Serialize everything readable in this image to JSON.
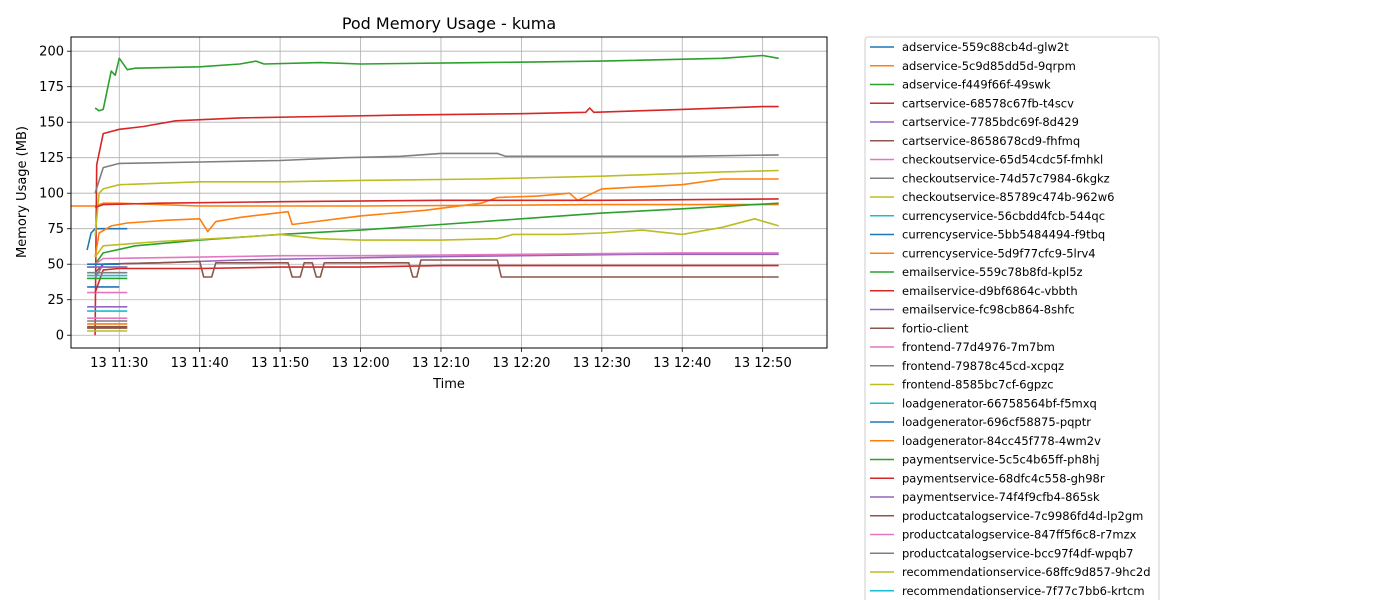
{
  "chart_data": {
    "type": "line",
    "title": "Pod Memory Usage - kuma",
    "xlabel": "Time",
    "ylabel": "Memory Usage (MB)",
    "x_unit": "minutes",
    "x_ticks": [
      {
        "label": "13 11:30",
        "t": "11:30"
      },
      {
        "label": "13 11:40",
        "t": "11:40"
      },
      {
        "label": "13 11:50",
        "t": "11:50"
      },
      {
        "label": "13 12:00",
        "t": "12:00"
      },
      {
        "label": "13 12:10",
        "t": "12:10"
      },
      {
        "label": "13 12:20",
        "t": "12:20"
      },
      {
        "label": "13 12:30",
        "t": "12:30"
      },
      {
        "label": "13 12:40",
        "t": "12:40"
      },
      {
        "label": "13 12:50",
        "t": "12:50"
      }
    ],
    "xlim": [
      "11:24",
      "12:58"
    ],
    "y_ticks": [
      0,
      25,
      50,
      75,
      100,
      125,
      150,
      175,
      200
    ],
    "ylim": [
      -9,
      210
    ],
    "grid": true,
    "legend_position": "outside-right",
    "series": [
      {
        "name": "adservice-559c88cb4d-glw2t",
        "color": "#1f77b4",
        "points": [
          [
            "11:26",
            60
          ],
          [
            "11:26.5",
            72
          ],
          [
            "11:27",
            75
          ],
          [
            "11:28",
            75
          ],
          [
            "11:31",
            75
          ]
        ]
      },
      {
        "name": "adservice-5c9d85dd5d-9qrpm",
        "color": "#ff7f0e",
        "points": [
          [
            "11:24",
            91
          ],
          [
            "11:27",
            91
          ],
          [
            "11:27.5",
            92
          ],
          [
            "11:28",
            93
          ],
          [
            "11:30",
            93
          ],
          [
            "11:40",
            91
          ],
          [
            "12:00",
            91
          ],
          [
            "12:30",
            92
          ],
          [
            "12:52",
            92
          ]
        ]
      },
      {
        "name": "adservice-f449f66f-49swk",
        "color": "#2ca02c",
        "points": [
          [
            "11:27",
            160
          ],
          [
            "11:27.5",
            158
          ],
          [
            "11:28",
            159
          ],
          [
            "11:29",
            186
          ],
          [
            "11:29.5",
            183
          ],
          [
            "11:30",
            195
          ],
          [
            "11:31",
            187
          ],
          [
            "11:32",
            188
          ],
          [
            "11:40",
            189
          ],
          [
            "11:45",
            191
          ],
          [
            "11:47",
            193
          ],
          [
            "11:48",
            191
          ],
          [
            "11:55",
            192
          ],
          [
            "12:00",
            191
          ],
          [
            "12:15",
            192
          ],
          [
            "12:30",
            193
          ],
          [
            "12:45",
            195
          ],
          [
            "12:50",
            197
          ],
          [
            "12:52",
            195
          ]
        ]
      },
      {
        "name": "cartservice-68578c67fb-t4scv",
        "color": "#d62728",
        "points": [
          [
            "11:27",
            0
          ],
          [
            "11:27.2",
            120
          ],
          [
            "11:28",
            142
          ],
          [
            "11:30",
            145
          ],
          [
            "11:33",
            147
          ],
          [
            "11:37",
            151
          ],
          [
            "11:45",
            153
          ],
          [
            "11:55",
            154
          ],
          [
            "12:05",
            155
          ],
          [
            "12:20",
            156
          ],
          [
            "12:28",
            157
          ],
          [
            "12:28.5",
            160
          ],
          [
            "12:29",
            157
          ],
          [
            "12:40",
            159
          ],
          [
            "12:50",
            161
          ],
          [
            "12:52",
            161
          ]
        ]
      },
      {
        "name": "cartservice-7785bdc69f-8d429",
        "color": "#9467bd",
        "points": [
          [
            "11:26",
            20
          ],
          [
            "11:31",
            20
          ]
        ]
      },
      {
        "name": "cartservice-8658678cd9-fhfmq",
        "color": "#8c564b",
        "points": [
          [
            "11:26",
            5
          ],
          [
            "11:31",
            5
          ]
        ]
      },
      {
        "name": "checkoutservice-65d54cdc5f-fmhkl",
        "color": "#e377c2",
        "points": [
          [
            "11:26",
            30
          ],
          [
            "11:31",
            30
          ]
        ]
      },
      {
        "name": "checkoutservice-74d57c7984-6kgkz",
        "color": "#7f7f7f",
        "points": [
          [
            "11:27",
            100
          ],
          [
            "11:28",
            118
          ],
          [
            "11:30",
            121
          ],
          [
            "11:40",
            122
          ],
          [
            "11:50",
            123
          ],
          [
            "11:58",
            125
          ],
          [
            "12:05",
            126
          ],
          [
            "12:10",
            128
          ],
          [
            "12:17",
            128
          ],
          [
            "12:18",
            126
          ],
          [
            "12:30",
            126
          ],
          [
            "12:40",
            126
          ],
          [
            "12:52",
            127
          ]
        ]
      },
      {
        "name": "checkoutservice-85789c474b-962w6",
        "color": "#bcbd22",
        "points": [
          [
            "11:27",
            70
          ],
          [
            "11:27.5",
            100
          ],
          [
            "11:28",
            103
          ],
          [
            "11:30",
            106
          ],
          [
            "11:40",
            108
          ],
          [
            "11:50",
            108
          ],
          [
            "12:00",
            109
          ],
          [
            "12:15",
            110
          ],
          [
            "12:30",
            112
          ],
          [
            "12:45",
            115
          ],
          [
            "12:52",
            116
          ]
        ]
      },
      {
        "name": "currencyservice-56cbdd4fcb-544qc",
        "color": "#17becf",
        "points": [
          [
            "11:26",
            48
          ],
          [
            "11:31",
            48
          ]
        ]
      },
      {
        "name": "currencyservice-5bb5484494-f9tbq",
        "color": "#1f77b4",
        "points": [
          [
            "11:26",
            34
          ],
          [
            "11:30",
            34
          ]
        ]
      },
      {
        "name": "currencyservice-5d9f77cfc9-5lrv4",
        "color": "#ff7f0e",
        "points": [
          [
            "11:27",
            55
          ],
          [
            "11:27.5",
            72
          ],
          [
            "11:29",
            77
          ],
          [
            "11:31",
            79
          ],
          [
            "11:36",
            81
          ],
          [
            "11:40",
            82
          ],
          [
            "11:41",
            73
          ],
          [
            "11:42",
            80
          ],
          [
            "11:45",
            83
          ],
          [
            "11:51",
            87
          ],
          [
            "11:51.5",
            78
          ],
          [
            "11:53",
            79
          ],
          [
            "12:00",
            84
          ],
          [
            "12:08",
            88
          ],
          [
            "12:15",
            93
          ],
          [
            "12:17",
            97
          ],
          [
            "12:22",
            98
          ],
          [
            "12:26",
            100
          ],
          [
            "12:27",
            95
          ],
          [
            "12:30",
            103
          ],
          [
            "12:40",
            106
          ],
          [
            "12:45",
            110
          ],
          [
            "12:52",
            110
          ]
        ]
      },
      {
        "name": "emailservice-559c78b8fd-kpl5z",
        "color": "#2ca02c",
        "points": [
          [
            "11:27",
            50
          ],
          [
            "11:28",
            58
          ],
          [
            "11:32",
            63
          ],
          [
            "11:40",
            67
          ],
          [
            "11:50",
            71
          ],
          [
            "12:00",
            74
          ],
          [
            "12:10",
            78
          ],
          [
            "12:20",
            82
          ],
          [
            "12:30",
            86
          ],
          [
            "12:40",
            89
          ],
          [
            "12:52",
            93
          ]
        ]
      },
      {
        "name": "emailservice-d9bf6864c-vbbth",
        "color": "#d62728",
        "points": [
          [
            "11:27",
            30
          ],
          [
            "11:28",
            46
          ],
          [
            "11:30",
            47
          ],
          [
            "11:40",
            47
          ],
          [
            "11:50",
            48
          ],
          [
            "12:00",
            48
          ],
          [
            "12:10",
            49
          ],
          [
            "12:30",
            49
          ],
          [
            "12:52",
            49
          ]
        ]
      },
      {
        "name": "emailservice-fc98cb864-8shfc",
        "color": "#9467bd",
        "points": [
          [
            "11:27",
            40
          ],
          [
            "11:28",
            50
          ],
          [
            "11:35",
            51
          ],
          [
            "11:45",
            53
          ],
          [
            "11:55",
            54
          ],
          [
            "12:05",
            55
          ],
          [
            "12:20",
            56
          ],
          [
            "12:35",
            57
          ],
          [
            "12:52",
            57
          ]
        ]
      },
      {
        "name": "fortio-client",
        "color": "#8c564b",
        "points": [
          [
            "11:27",
            44
          ],
          [
            "11:28",
            50
          ],
          [
            "11:35",
            51
          ],
          [
            "11:40",
            52
          ],
          [
            "11:40.5",
            41
          ],
          [
            "11:41.5",
            41
          ],
          [
            "11:42",
            51
          ],
          [
            "11:51",
            51
          ],
          [
            "11:51.5",
            41
          ],
          [
            "11:52.5",
            41
          ],
          [
            "11:53",
            51
          ],
          [
            "11:54",
            51
          ],
          [
            "11:54.5",
            41
          ],
          [
            "11:55",
            41
          ],
          [
            "11:55.5",
            51
          ],
          [
            "12:06",
            51
          ],
          [
            "12:06.5",
            41
          ],
          [
            "12:07",
            41
          ],
          [
            "12:07.5",
            53
          ],
          [
            "12:17",
            53
          ],
          [
            "12:17.5",
            41
          ],
          [
            "12:52",
            41
          ]
        ]
      },
      {
        "name": "frontend-77d4976-7m7bm",
        "color": "#e377c2",
        "points": [
          [
            "11:27",
            50
          ],
          [
            "11:28",
            54
          ],
          [
            "11:40",
            55
          ],
          [
            "11:50",
            56
          ],
          [
            "12:00",
            56
          ],
          [
            "12:20",
            57
          ],
          [
            "12:40",
            58
          ],
          [
            "12:52",
            58
          ]
        ]
      },
      {
        "name": "frontend-79878c45cd-xcpqz",
        "color": "#7f7f7f",
        "points": [
          [
            "11:26",
            10
          ],
          [
            "11:31",
            10
          ]
        ]
      },
      {
        "name": "frontend-8585bc7cf-6gpzc",
        "color": "#bcbd22",
        "points": [
          [
            "11:27",
            55
          ],
          [
            "11:28",
            63
          ],
          [
            "11:35",
            66
          ],
          [
            "11:45",
            69
          ],
          [
            "11:50",
            71
          ],
          [
            "11:55",
            68
          ],
          [
            "12:00",
            67
          ],
          [
            "12:10",
            67
          ],
          [
            "12:17",
            68
          ],
          [
            "12:19",
            71
          ],
          [
            "12:25",
            71
          ],
          [
            "12:30",
            72
          ],
          [
            "12:35",
            74
          ],
          [
            "12:40",
            71
          ],
          [
            "12:45",
            76
          ],
          [
            "12:49",
            82
          ],
          [
            "12:52",
            77
          ]
        ]
      },
      {
        "name": "loadgenerator-66758564bf-f5mxq",
        "color": "#17becf",
        "points": [
          [
            "11:26",
            17
          ],
          [
            "11:31",
            17
          ]
        ]
      },
      {
        "name": "loadgenerator-696cf58875-pqptr",
        "color": "#1f77b4",
        "points": [
          [
            "11:26",
            50
          ],
          [
            "11:30",
            50
          ]
        ]
      },
      {
        "name": "loadgenerator-84cc45f778-4wm2v",
        "color": "#ff7f0e",
        "points": [
          [
            "11:26",
            8
          ],
          [
            "11:31",
            8
          ]
        ]
      },
      {
        "name": "paymentservice-5c5c4b65ff-ph8hj",
        "color": "#2ca02c",
        "points": [
          [
            "11:26",
            40
          ],
          [
            "11:31",
            40
          ]
        ]
      },
      {
        "name": "paymentservice-68dfc4c558-gh98r",
        "color": "#d62728",
        "points": [
          [
            "11:27",
            90
          ],
          [
            "11:28",
            92
          ],
          [
            "11:35",
            93
          ],
          [
            "11:50",
            94
          ],
          [
            "12:10",
            95
          ],
          [
            "12:30",
            95
          ],
          [
            "12:52",
            96
          ]
        ]
      },
      {
        "name": "paymentservice-74f4f9cfb4-865sk",
        "color": "#9467bd",
        "points": [
          [
            "11:26",
            48
          ],
          [
            "11:31",
            48
          ]
        ]
      },
      {
        "name": "productcatalogservice-7c9986fd4d-lp2gm",
        "color": "#8c564b",
        "points": [
          [
            "11:26",
            6
          ],
          [
            "11:31",
            6
          ]
        ]
      },
      {
        "name": "productcatalogservice-847ff5f6c8-r7mzx",
        "color": "#e377c2",
        "points": [
          [
            "11:26",
            12
          ],
          [
            "11:31",
            12
          ]
        ]
      },
      {
        "name": "productcatalogservice-bcc97f4df-wpqb7",
        "color": "#7f7f7f",
        "points": [
          [
            "11:26",
            44
          ],
          [
            "11:31",
            44
          ]
        ]
      },
      {
        "name": "recommendationservice-68ffc9d857-9hc2d",
        "color": "#bcbd22",
        "points": [
          [
            "11:26",
            3
          ],
          [
            "11:31",
            3
          ]
        ]
      },
      {
        "name": "recommendationservice-7f77c7bb6-krtcm",
        "color": "#17becf",
        "points": [
          [
            "11:26",
            42
          ],
          [
            "11:31",
            42
          ]
        ]
      }
    ]
  }
}
